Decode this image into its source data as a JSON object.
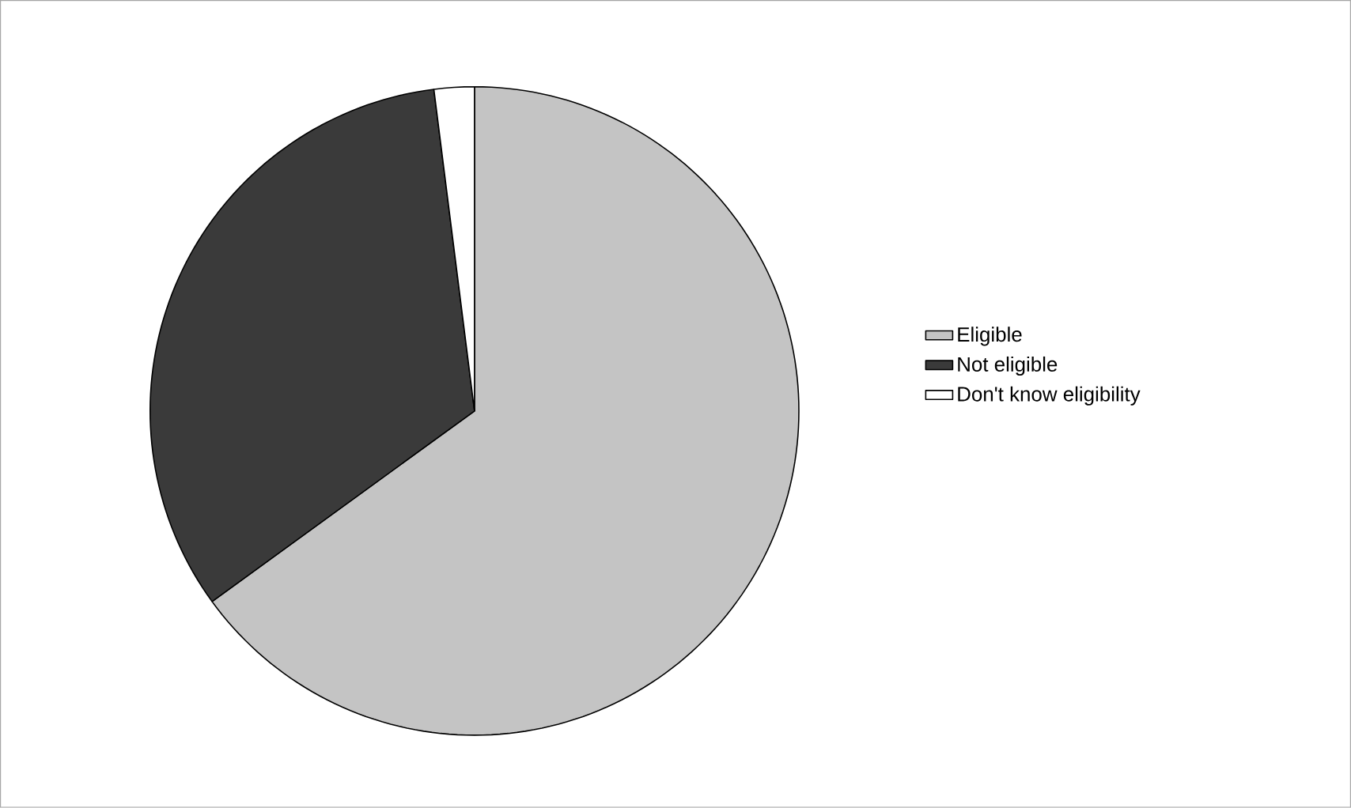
{
  "chart_data": {
    "type": "pie",
    "categories": [
      "Eligible",
      "Not eligible",
      "Don't know eligibility"
    ],
    "values": [
      65,
      33,
      2
    ],
    "colors": [
      "#c4c4c4",
      "#3a3a3a",
      "#ffffff"
    ],
    "legend": "right"
  }
}
